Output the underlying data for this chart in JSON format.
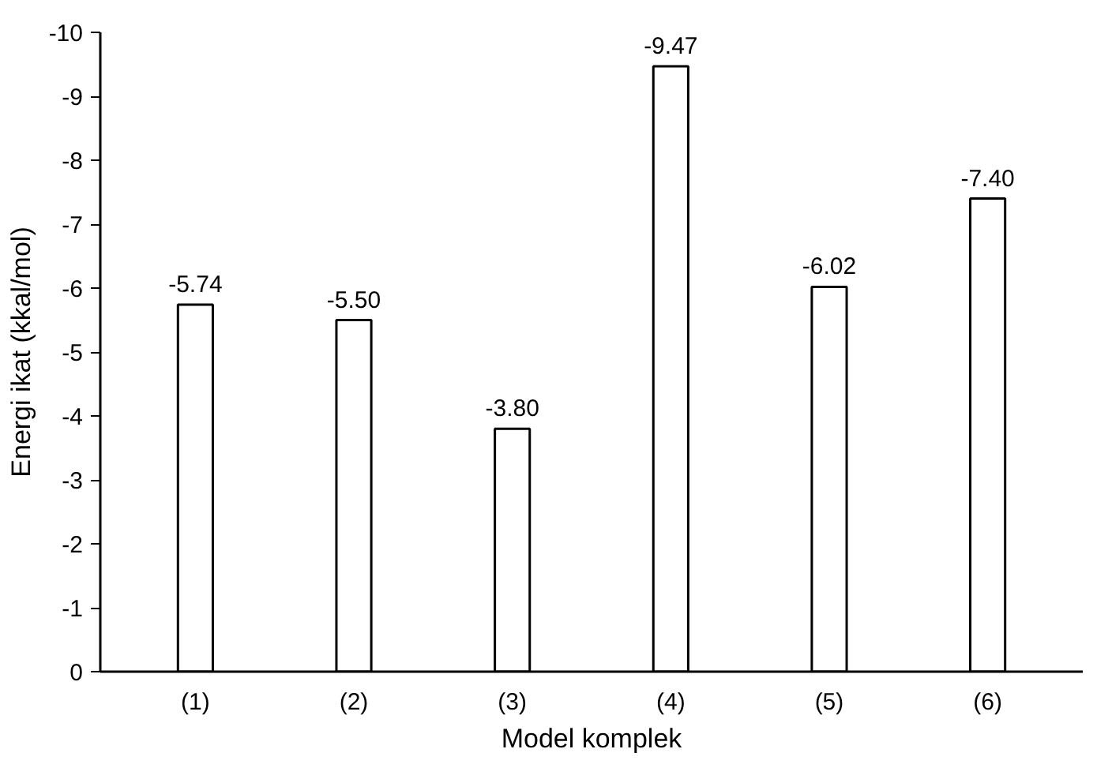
{
  "chart_data": {
    "type": "bar",
    "xlabel": "Model komplek",
    "ylabel": "Energi ikat (kkal/mol)",
    "categories": [
      "(1)",
      "(2)",
      "(3)",
      "(4)",
      "(5)",
      "(6)"
    ],
    "values": [
      -5.74,
      -5.5,
      -3.8,
      -9.47,
      -6.02,
      -7.4
    ],
    "value_labels": [
      "-5.74",
      "-5.50",
      "-3.80",
      "-9.47",
      "-6.02",
      "-7.40"
    ],
    "color": "#ffffff",
    "ylim": [
      0,
      -10
    ],
    "yticks": [
      0,
      -1,
      -2,
      -3,
      -4,
      -5,
      -6,
      -7,
      -8,
      -9,
      -10
    ],
    "grid": false
  }
}
